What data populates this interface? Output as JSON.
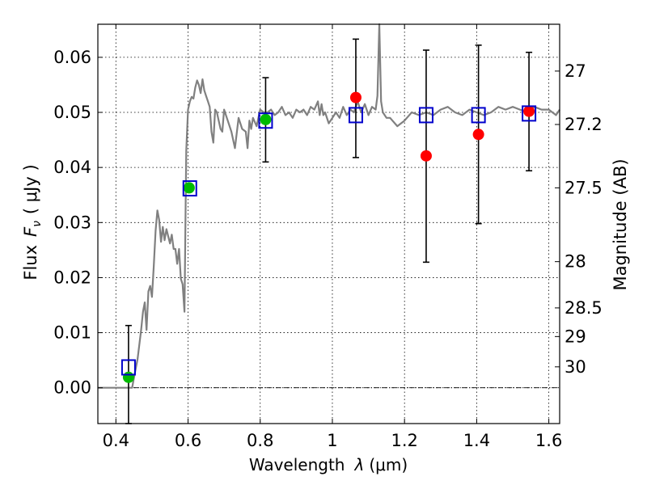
{
  "chart_data": {
    "type": "scatter",
    "xlabel": "Wavelength",
    "xlabel_symbol": "λ",
    "xlabel_unit": "(μm)",
    "ylabel": "Flux",
    "ylabel_symbol": "F",
    "ylabel_subscript": "ν",
    "ylabel_unit": "( μJy )",
    "y2label": "Magnitude (AB)",
    "xlim": [
      0.35,
      1.63
    ],
    "ylim": [
      -0.0065,
      0.066
    ],
    "grid": true,
    "x_ticks": [
      {
        "value": 0.4,
        "label": "0.4"
      },
      {
        "value": 0.6,
        "label": "0.6"
      },
      {
        "value": 0.8,
        "label": "0.8"
      },
      {
        "value": 1.0,
        "label": "1"
      },
      {
        "value": 1.2,
        "label": "1.2"
      },
      {
        "value": 1.4,
        "label": "1.4"
      },
      {
        "value": 1.6,
        "label": "1.6"
      }
    ],
    "y_ticks": [
      {
        "value": 0.0,
        "label": "0.00"
      },
      {
        "value": 0.01,
        "label": "0.01"
      },
      {
        "value": 0.02,
        "label": "0.02"
      },
      {
        "value": 0.03,
        "label": "0.03"
      },
      {
        "value": 0.04,
        "label": "0.04"
      },
      {
        "value": 0.05,
        "label": "0.05"
      },
      {
        "value": 0.06,
        "label": "0.06"
      }
    ],
    "y2_ticks": [
      {
        "label": "27",
        "flux": 0.0575
      },
      {
        "label": "27.2",
        "flux": 0.0478
      },
      {
        "label": "27.5",
        "flux": 0.0363
      },
      {
        "label": "28",
        "flux": 0.0229
      },
      {
        "label": "28.5",
        "flux": 0.0145
      },
      {
        "label": "29",
        "flux": 0.0093
      },
      {
        "label": "30",
        "flux": 0.0038
      }
    ],
    "series": [
      {
        "kind": "model_spectrum",
        "color": "#808080",
        "x": [
          0.35,
          0.4,
          0.43,
          0.44,
          0.445,
          0.45,
          0.46,
          0.47,
          0.475,
          0.48,
          0.485,
          0.49,
          0.495,
          0.5,
          0.505,
          0.51,
          0.515,
          0.52,
          0.525,
          0.53,
          0.535,
          0.54,
          0.545,
          0.55,
          0.555,
          0.56,
          0.565,
          0.57,
          0.575,
          0.58,
          0.585,
          0.59,
          0.595,
          0.6,
          0.605,
          0.61,
          0.615,
          0.62,
          0.625,
          0.63,
          0.635,
          0.64,
          0.645,
          0.65,
          0.655,
          0.66,
          0.665,
          0.67,
          0.675,
          0.68,
          0.685,
          0.69,
          0.695,
          0.7,
          0.71,
          0.72,
          0.73,
          0.74,
          0.75,
          0.76,
          0.765,
          0.77,
          0.775,
          0.78,
          0.79,
          0.8,
          0.81,
          0.82,
          0.83,
          0.84,
          0.85,
          0.86,
          0.87,
          0.88,
          0.89,
          0.9,
          0.91,
          0.92,
          0.93,
          0.94,
          0.95,
          0.96,
          0.965,
          0.97,
          0.975,
          0.98,
          0.99,
          1.0,
          1.01,
          1.02,
          1.03,
          1.04,
          1.05,
          1.06,
          1.07,
          1.08,
          1.09,
          1.1,
          1.11,
          1.12,
          1.125,
          1.13,
          1.135,
          1.14,
          1.15,
          1.16,
          1.18,
          1.2,
          1.22,
          1.24,
          1.26,
          1.28,
          1.3,
          1.32,
          1.34,
          1.36,
          1.38,
          1.4,
          1.42,
          1.44,
          1.46,
          1.48,
          1.5,
          1.52,
          1.54,
          1.56,
          1.58,
          1.6,
          1.62,
          1.63
        ],
        "y": [
          0.0,
          0.0,
          0.0,
          0.0,
          0.0,
          0.0018,
          0.0052,
          0.0105,
          0.0138,
          0.0155,
          0.0105,
          0.0175,
          0.0185,
          0.0165,
          0.022,
          0.0285,
          0.0322,
          0.0305,
          0.0265,
          0.0292,
          0.0268,
          0.0288,
          0.0275,
          0.0262,
          0.0278,
          0.0252,
          0.0252,
          0.0225,
          0.0252,
          0.0198,
          0.0188,
          0.0138,
          0.043,
          0.0505,
          0.052,
          0.0528,
          0.0525,
          0.0545,
          0.0558,
          0.055,
          0.0535,
          0.056,
          0.054,
          0.053,
          0.052,
          0.051,
          0.0465,
          0.0445,
          0.0505,
          0.05,
          0.0485,
          0.047,
          0.0465,
          0.0505,
          0.0485,
          0.0465,
          0.0435,
          0.049,
          0.047,
          0.0465,
          0.0435,
          0.0485,
          0.047,
          0.049,
          0.0475,
          0.0505,
          0.05,
          0.05,
          0.0505,
          0.0495,
          0.05,
          0.051,
          0.0495,
          0.05,
          0.049,
          0.0505,
          0.05,
          0.0505,
          0.0495,
          0.051,
          0.0505,
          0.052,
          0.0495,
          0.0515,
          0.0495,
          0.05,
          0.048,
          0.049,
          0.05,
          0.049,
          0.051,
          0.0495,
          0.0505,
          0.05,
          0.052,
          0.05,
          0.0515,
          0.0495,
          0.051,
          0.0505,
          0.053,
          0.066,
          0.052,
          0.05,
          0.049,
          0.049,
          0.0475,
          0.0485,
          0.05,
          0.0495,
          0.05,
          0.0495,
          0.0505,
          0.051,
          0.05,
          0.0495,
          0.0505,
          0.05,
          0.0495,
          0.05,
          0.051,
          0.0505,
          0.051,
          0.0505,
          0.05,
          0.051,
          0.0505,
          0.0505,
          0.0495,
          0.0505
        ]
      },
      {
        "kind": "model_bandpass_squares",
        "color": "#0000cc",
        "x": [
          0.435,
          0.605,
          0.815,
          1.065,
          1.26,
          1.405,
          1.545
        ],
        "y": [
          0.0037,
          0.0362,
          0.0485,
          0.0495,
          0.0495,
          0.0495,
          0.0498
        ]
      },
      {
        "kind": "detections",
        "color": "#00bb00",
        "x": [
          0.435,
          0.603,
          0.815
        ],
        "y": [
          0.0019,
          0.0363,
          0.0487
        ]
      },
      {
        "kind": "measurements",
        "color": "#ff0000",
        "x": [
          1.065,
          1.26,
          1.405,
          1.545
        ],
        "y": [
          0.0527,
          0.0421,
          0.046,
          0.0502
        ]
      }
    ],
    "error_bars": [
      {
        "x": 0.435,
        "low": -0.0065,
        "high": 0.0113
      },
      {
        "x": 0.815,
        "low": 0.041,
        "high": 0.0563
      },
      {
        "x": 1.065,
        "low": 0.0418,
        "high": 0.0633
      },
      {
        "x": 1.26,
        "low": 0.0228,
        "high": 0.0613
      },
      {
        "x": 1.405,
        "low": 0.0298,
        "high": 0.0622
      },
      {
        "x": 1.545,
        "low": 0.0394,
        "high": 0.0609
      }
    ]
  }
}
